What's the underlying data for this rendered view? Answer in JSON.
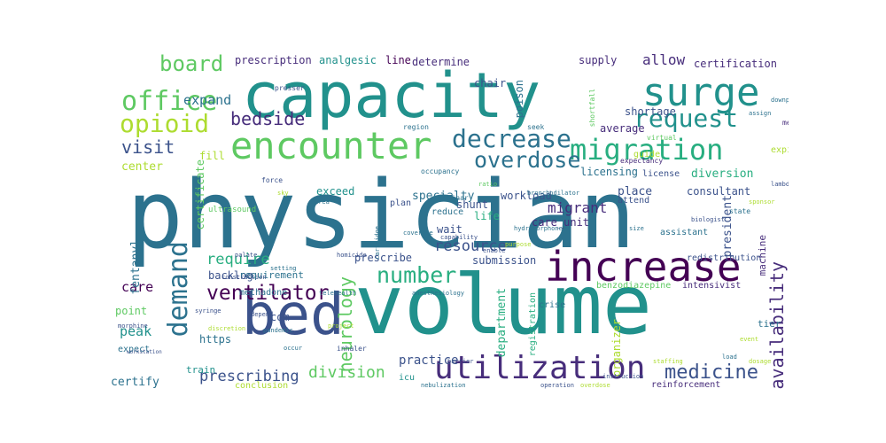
{
  "word_cloud": {
    "palette": [
      "#440154",
      "#472d7b",
      "#3b528b",
      "#2c728e",
      "#21918c",
      "#28ae80",
      "#5ec962",
      "#addc30",
      "#fde725"
    ],
    "words": [
      {
        "text": "physician",
        "color": "#2c728e"
      },
      {
        "text": "volume",
        "color": "#21918c"
      },
      {
        "text": "capacity",
        "color": "#21918c"
      },
      {
        "text": "bed",
        "color": "#3b528b"
      },
      {
        "text": "increase",
        "color": "#440154"
      },
      {
        "text": "encounter",
        "color": "#5ec962"
      },
      {
        "text": "surge",
        "color": "#21918c"
      },
      {
        "text": "utilization",
        "color": "#472d7b"
      },
      {
        "text": "migration",
        "color": "#28ae80"
      },
      {
        "text": "office",
        "color": "#5ec962"
      },
      {
        "text": "demand",
        "color": "#2c728e"
      },
      {
        "text": "opioid",
        "color": "#addc30"
      },
      {
        "text": "decrease",
        "color": "#2c728e"
      },
      {
        "text": "request",
        "color": "#21918c"
      },
      {
        "text": "overdose",
        "color": "#2c728e"
      },
      {
        "text": "number",
        "color": "#28ae80"
      },
      {
        "text": "ventilator",
        "color": "#440154"
      },
      {
        "text": "medicine",
        "color": "#3b528b"
      },
      {
        "text": "board",
        "color": "#5ec962"
      },
      {
        "text": "bedside",
        "color": "#472d7b"
      },
      {
        "text": "visit",
        "color": "#3b528b"
      },
      {
        "text": "neurology",
        "color": "#5ec962"
      },
      {
        "text": "availability",
        "color": "#472d7b"
      },
      {
        "text": "division",
        "color": "#5ec962"
      },
      {
        "text": "prescribing",
        "color": "#3b528b"
      },
      {
        "text": "resource",
        "color": "#3b528b"
      },
      {
        "text": "require",
        "color": "#28ae80"
      },
      {
        "text": "migrant",
        "color": "#472d7b"
      },
      {
        "text": "allow",
        "color": "#472d7b"
      },
      {
        "text": "expand",
        "color": "#2c728e"
      },
      {
        "text": "care",
        "color": "#440154"
      },
      {
        "text": "peak",
        "color": "#21918c"
      },
      {
        "text": "certification",
        "color": "#472d7b"
      },
      {
        "text": "shortage",
        "color": "#3b528b"
      },
      {
        "text": "specialty",
        "color": "#2c728e"
      },
      {
        "text": "diversion",
        "color": "#28ae80"
      },
      {
        "text": "care_unit",
        "color": "#472d7b"
      },
      {
        "text": "president",
        "color": "#3b528b"
      },
      {
        "text": "com",
        "color": "#3b528b"
      },
      {
        "text": "practice",
        "color": "#3b528b"
      },
      {
        "text": "department",
        "color": "#28ae80"
      },
      {
        "text": "certify",
        "color": "#2c728e"
      },
      {
        "text": "center",
        "color": "#addc30"
      },
      {
        "text": "fentanyl",
        "color": "#2c728e"
      },
      {
        "text": "https",
        "color": "#2c728e"
      },
      {
        "text": "backlog",
        "color": "#3b528b"
      },
      {
        "text": "point",
        "color": "#5ec962"
      },
      {
        "text": "prescription",
        "color": "#472d7b"
      },
      {
        "text": "analgesic",
        "color": "#21918c"
      },
      {
        "text": "line",
        "color": "#440154"
      },
      {
        "text": "determine",
        "color": "#472d7b"
      },
      {
        "text": "supply",
        "color": "#472d7b"
      },
      {
        "text": "shunt",
        "color": "#3b528b"
      },
      {
        "text": "workload",
        "color": "#3b528b"
      },
      {
        "text": "average",
        "color": "#472d7b"
      },
      {
        "text": "life",
        "color": "#28ae80"
      },
      {
        "text": "wait",
        "color": "#3b528b"
      },
      {
        "text": "place",
        "color": "#3b528b"
      },
      {
        "text": "exceed",
        "color": "#21918c"
      },
      {
        "text": "machine",
        "color": "#472d7b"
      },
      {
        "text": "submission",
        "color": "#3b528b"
      },
      {
        "text": "prescribe",
        "color": "#3b528b"
      },
      {
        "text": "registration",
        "color": "#28ae80"
      },
      {
        "text": "organizer",
        "color": "#addc30"
      },
      {
        "text": "certificate",
        "color": "#5ec962"
      },
      {
        "text": "fill",
        "color": "#addc30"
      },
      {
        "text": "chair",
        "color": "#3b528b"
      },
      {
        "text": "poison",
        "color": "#2c728e"
      },
      {
        "text": "licensing",
        "color": "#2c728e"
      },
      {
        "text": "consultant",
        "color": "#3b528b"
      },
      {
        "text": "assistant",
        "color": "#2c728e"
      },
      {
        "text": "redistribution",
        "color": "#3b528b"
      },
      {
        "text": "intensivist",
        "color": "#472d7b"
      },
      {
        "text": "reinforcement",
        "color": "#472d7b"
      },
      {
        "text": "icu",
        "color": "#21918c"
      },
      {
        "text": "train",
        "color": "#21918c"
      },
      {
        "text": "expect",
        "color": "#2c728e"
      },
      {
        "text": "conclusion",
        "color": "#addc30"
      },
      {
        "text": "requirement",
        "color": "#2c728e"
      },
      {
        "text": "methadone",
        "color": "#2c728e"
      },
      {
        "text": "benzodiazepine",
        "color": "#5ec962"
      },
      {
        "text": "tier",
        "color": "#2c728e"
      },
      {
        "text": "crise",
        "color": "#2c728e"
      },
      {
        "text": "attend",
        "color": "#3b528b"
      },
      {
        "text": "license",
        "color": "#3b528b"
      },
      {
        "text": "guide",
        "color": "#addc30"
      },
      {
        "text": "expiratory",
        "color": "#addc30"
      },
      {
        "text": "reduce",
        "color": "#2c728e"
      },
      {
        "text": "plan",
        "color": "#3b528b"
      },
      {
        "text": "seminar",
        "color": "#2c728e"
      },
      {
        "text": "occupancy",
        "color": "#2c728e"
      },
      {
        "text": "ultrasound",
        "color": "#5ec962"
      },
      {
        "text": "force",
        "color": "#3b528b"
      },
      {
        "text": "region",
        "color": "#2c728e"
      },
      {
        "text": "meet",
        "color": "#472d7b"
      },
      {
        "text": "state",
        "color": "#2c728e"
      },
      {
        "text": "presser",
        "color": "#3b528b"
      },
      {
        "text": "seek",
        "color": "#2c728e"
      },
      {
        "text": "shortfall",
        "color": "#5ec962"
      },
      {
        "text": "expectancy",
        "color": "#472d7b"
      },
      {
        "text": "bronchodilator",
        "color": "#2c728e"
      },
      {
        "text": "virtual",
        "color": "#5ec962"
      },
      {
        "text": "capability",
        "color": "#3b528b"
      },
      {
        "text": "purpose",
        "color": "#addc30"
      },
      {
        "text": "enable",
        "color": "#3b528b"
      },
      {
        "text": "homicide",
        "color": "#3b528b"
      },
      {
        "text": "coverage",
        "color": "#2c728e"
      },
      {
        "text": "biologist",
        "color": "#3b528b"
      },
      {
        "text": "sponsor",
        "color": "#addc30"
      },
      {
        "text": "anesthesiology",
        "color": "#2c728e"
      },
      {
        "text": "telehealth",
        "color": "#2c728e"
      },
      {
        "text": "palate",
        "color": "#3b528b"
      },
      {
        "text": "construction",
        "color": "#3b528b"
      },
      {
        "text": "setting",
        "color": "#2c728e"
      },
      {
        "text": "morphine",
        "color": "#3b528b"
      },
      {
        "text": "workstation",
        "color": "#3b528b"
      },
      {
        "text": "syringe",
        "color": "#3b528b"
      },
      {
        "text": "discretion",
        "color": "#addc30"
      },
      {
        "text": "pandemic",
        "color": "#2c728e"
      },
      {
        "text": "project",
        "color": "#addc30"
      },
      {
        "text": "depend",
        "color": "#3b528b"
      },
      {
        "text": "barrier",
        "color": "#3b528b"
      },
      {
        "text": "nebulization",
        "color": "#2c728e"
      },
      {
        "text": "operation",
        "color": "#3b528b"
      },
      {
        "text": "overdose",
        "color": "#addc30"
      },
      {
        "text": "instruction",
        "color": "#3b528b"
      },
      {
        "text": "size",
        "color": "#2c728e"
      },
      {
        "text": "hydromorphone",
        "color": "#2c728e"
      },
      {
        "text": "inhaler",
        "color": "#3b528b"
      },
      {
        "text": "dosage",
        "color": "#addc30"
      },
      {
        "text": "cartridge",
        "color": "#2c728e"
      },
      {
        "text": "sky",
        "color": "#addc30"
      },
      {
        "text": "area",
        "color": "#2c728e"
      },
      {
        "text": "downplay",
        "color": "#2c728e"
      },
      {
        "text": "assign",
        "color": "#2c728e"
      },
      {
        "text": "lambda",
        "color": "#3b528b"
      },
      {
        "text": "staffing",
        "color": "#addc30"
      },
      {
        "text": "ratio",
        "color": "#5ec962"
      },
      {
        "text": "occur",
        "color": "#2c728e"
      },
      {
        "text": "event",
        "color": "#addc30"
      },
      {
        "text": "load",
        "color": "#2c728e"
      }
    ]
  }
}
